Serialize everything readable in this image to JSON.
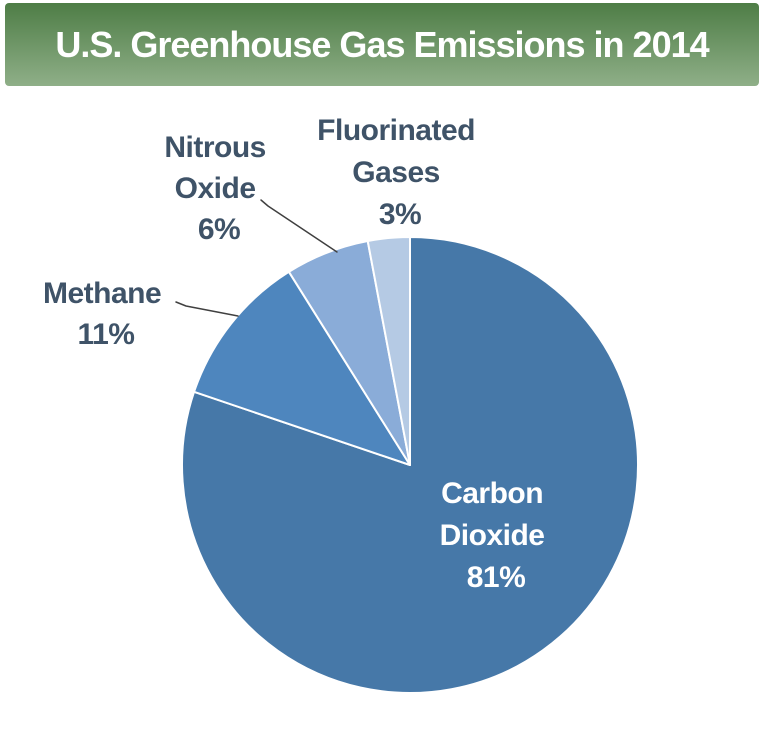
{
  "header": {
    "title": "U.S. Greenhouse Gas Emissions in 2014"
  },
  "chart_data": {
    "type": "pie",
    "title": "U.S. Greenhouse Gas Emissions in 2014",
    "categories": [
      "Carbon Dioxide",
      "Methane",
      "Nitrous Oxide",
      "Fluorinated Gases"
    ],
    "values": [
      81,
      11,
      6,
      3
    ],
    "unit": "%",
    "colors": [
      "#4678A8",
      "#4E86BE",
      "#8AACD8",
      "#B5CAE4"
    ],
    "start_angle_deg": 0,
    "direction": "clockwise",
    "legend": "none",
    "labels": [
      {
        "category": "Carbon Dioxide",
        "lines": [
          "Carbon",
          "Dioxide",
          "81%"
        ],
        "placement": "inside"
      },
      {
        "category": "Methane",
        "lines": [
          "Methane",
          "11%"
        ],
        "placement": "outside"
      },
      {
        "category": "Nitrous Oxide",
        "lines": [
          "Nitrous",
          "Oxide",
          "6%"
        ],
        "placement": "outside"
      },
      {
        "category": "Fluorinated Gases",
        "lines": [
          "Fluorinated",
          "Gases",
          "3%"
        ],
        "placement": "outside"
      }
    ]
  },
  "colors": {
    "banner_gradient_top": "#4E7D46",
    "banner_gradient_bottom": "#8FAF88",
    "banner_text": "#FFFFFF",
    "outside_label_text": "#3F5368",
    "inside_label_text": "#FFFFFF",
    "leader_line": "#404040",
    "slice_border": "#FFFFFF",
    "background": "#FFFFFF"
  }
}
